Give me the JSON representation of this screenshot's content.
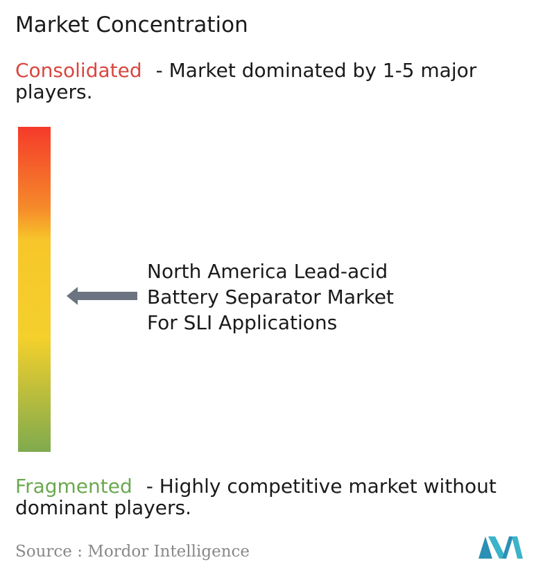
{
  "title": "Market Concentration",
  "consolidated": {
    "label": "Consolidated",
    "description": "- Market dominated by 1-5 major players."
  },
  "fragmented": {
    "label": "Fragmented",
    "description": "- Highly competitive market without dominant players."
  },
  "market": {
    "lines": [
      "North America Lead-acid",
      "Battery Separator Market",
      "For SLI Applications"
    ]
  },
  "source": "Source :  Mordor Intelligence"
}
